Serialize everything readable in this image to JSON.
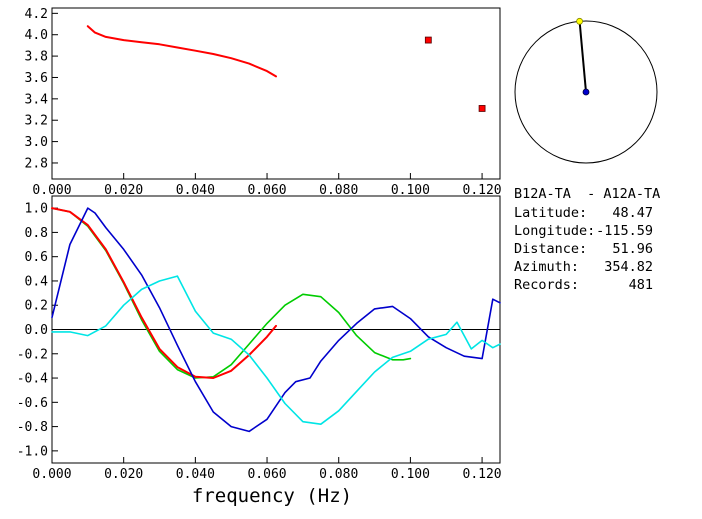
{
  "chart_data": [
    {
      "type": "scatter",
      "title": "",
      "xlabel": "",
      "ylabel": "",
      "xlim": [
        0.0,
        0.125
      ],
      "ylim": [
        2.65,
        4.25
      ],
      "xticks": [
        "0.000",
        "0.020",
        "0.040",
        "0.060",
        "0.080",
        "0.100",
        "0.120"
      ],
      "yticks": [
        "2.8",
        "3.0",
        "3.2",
        "3.4",
        "3.6",
        "3.8",
        "4.0",
        "4.2"
      ],
      "series": [
        {
          "color": "#ff0000",
          "style": "line",
          "x": [
            0.01,
            0.012,
            0.015,
            0.02,
            0.025,
            0.03,
            0.035,
            0.04,
            0.045,
            0.05,
            0.055,
            0.06,
            0.0625
          ],
          "y": [
            4.08,
            4.02,
            3.98,
            3.95,
            3.93,
            3.91,
            3.88,
            3.85,
            3.82,
            3.78,
            3.73,
            3.66,
            3.61
          ]
        },
        {
          "color": "#ff0000",
          "style": "square-markers",
          "x": [
            0.105,
            0.12
          ],
          "y": [
            3.95,
            3.31
          ]
        }
      ]
    },
    {
      "type": "line",
      "title": "",
      "xlabel": "frequency (Hz)",
      "ylabel": "",
      "xlim": [
        0.0,
        0.125
      ],
      "ylim": [
        -1.1,
        1.1
      ],
      "xticks": [
        "0.000",
        "0.020",
        "0.040",
        "0.060",
        "0.080",
        "0.100",
        "0.120"
      ],
      "yticks": [
        "1.0",
        "0.8",
        "0.6",
        "0.4",
        "0.2",
        "0.0",
        "-0.2",
        "-0.4",
        "-0.6",
        "-0.8",
        "-1.0"
      ],
      "series": [
        {
          "color": "#00cc00",
          "x": [
            0.0,
            0.005,
            0.01,
            0.015,
            0.02,
            0.025,
            0.03,
            0.035,
            0.04,
            0.045,
            0.05,
            0.055,
            0.06,
            0.065,
            0.07,
            0.075,
            0.08,
            0.085,
            0.09,
            0.095,
            0.098,
            0.1
          ],
          "y": [
            1.0,
            0.97,
            0.85,
            0.65,
            0.38,
            0.08,
            -0.18,
            -0.33,
            -0.4,
            -0.39,
            -0.29,
            -0.12,
            0.05,
            0.2,
            0.29,
            0.27,
            0.14,
            -0.05,
            -0.19,
            -0.25,
            -0.25,
            -0.24
          ]
        },
        {
          "color": "#ff0000",
          "x": [
            0.0,
            0.005,
            0.01,
            0.015,
            0.02,
            0.025,
            0.03,
            0.035,
            0.04,
            0.045,
            0.05,
            0.055,
            0.06,
            0.0625
          ],
          "y": [
            1.0,
            0.97,
            0.86,
            0.66,
            0.39,
            0.1,
            -0.16,
            -0.31,
            -0.39,
            -0.4,
            -0.34,
            -0.21,
            -0.06,
            0.03
          ]
        },
        {
          "color": "#0000cc",
          "x": [
            0.0,
            0.005,
            0.01,
            0.012,
            0.015,
            0.02,
            0.025,
            0.03,
            0.035,
            0.04,
            0.045,
            0.05,
            0.055,
            0.06,
            0.065,
            0.068,
            0.072,
            0.075,
            0.08,
            0.085,
            0.09,
            0.095,
            0.1,
            0.105,
            0.11,
            0.115,
            0.12,
            0.123,
            0.125
          ],
          "y": [
            0.1,
            0.7,
            1.0,
            0.96,
            0.84,
            0.66,
            0.45,
            0.18,
            -0.13,
            -0.43,
            -0.68,
            -0.8,
            -0.84,
            -0.74,
            -0.52,
            -0.43,
            -0.4,
            -0.26,
            -0.09,
            0.05,
            0.17,
            0.19,
            0.09,
            -0.06,
            -0.15,
            -0.22,
            -0.24,
            0.25,
            0.22
          ]
        },
        {
          "color": "#00e5e5",
          "x": [
            0.0,
            0.005,
            0.01,
            0.015,
            0.02,
            0.025,
            0.03,
            0.035,
            0.04,
            0.045,
            0.05,
            0.055,
            0.06,
            0.065,
            0.07,
            0.075,
            0.08,
            0.085,
            0.09,
            0.095,
            0.1,
            0.105,
            0.11,
            0.113,
            0.117,
            0.12,
            0.123,
            0.125
          ],
          "y": [
            -0.02,
            -0.02,
            -0.05,
            0.03,
            0.2,
            0.33,
            0.4,
            0.44,
            0.15,
            -0.03,
            -0.08,
            -0.21,
            -0.4,
            -0.61,
            -0.76,
            -0.78,
            -0.67,
            -0.51,
            -0.35,
            -0.23,
            -0.18,
            -0.08,
            -0.04,
            0.06,
            -0.16,
            -0.09,
            -0.15,
            -0.12
          ]
        }
      ]
    }
  ],
  "compass": {
    "azimuth_deg": 354.82
  },
  "info": {
    "station_pair": "B12A-TA  - A12A-TA",
    "latitude_label": "Latitude:",
    "latitude_value": "48.47",
    "longitude_label": "Longitude:",
    "longitude_value": "-115.59",
    "distance_label": "Distance:",
    "distance_value": "51.96",
    "azimuth_label": "Azimuth:",
    "azimuth_value": "354.82",
    "records_label": "Records:",
    "records_value": "481"
  }
}
